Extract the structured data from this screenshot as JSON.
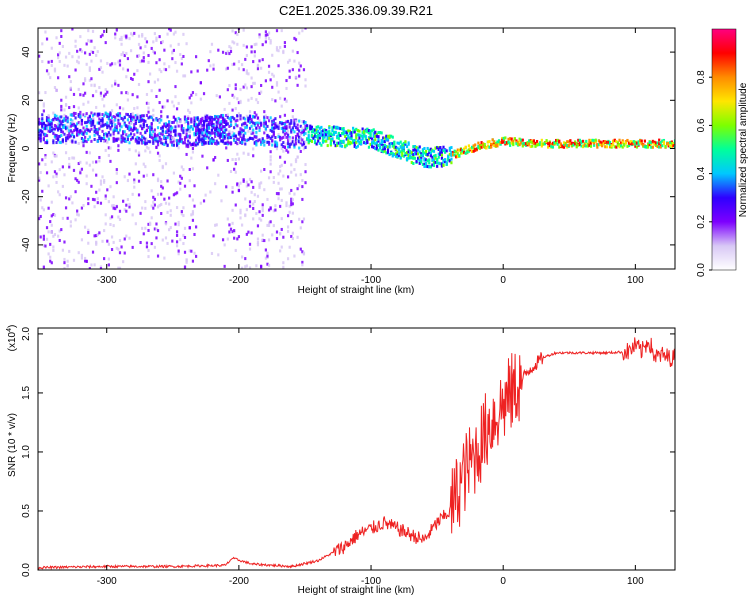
{
  "title": "C2E1.2025.336.09.39.R21",
  "chart_data": [
    {
      "type": "heatmap",
      "xlabel": "Height of straight line (km)",
      "ylabel": "Frequency (Hz)",
      "xlim": [
        -352,
        130
      ],
      "ylim": [
        -50,
        50
      ],
      "x_ticks": [
        -300,
        -200,
        -100,
        0,
        100
      ],
      "x_tick_labels": [
        "-300",
        "-200",
        "-100",
        "0",
        "100"
      ],
      "y_ticks": [
        -40,
        -20,
        0,
        20,
        40
      ],
      "y_tick_labels": [
        "-40",
        "-20",
        "0",
        "20",
        "40"
      ],
      "grid": false,
      "ridge": {
        "x": [
          -352,
          -300,
          -250,
          -200,
          -160,
          -130,
          -100,
          -80,
          -60,
          -40,
          -20,
          0,
          20,
          60,
          100,
          130
        ],
        "freq": [
          8,
          9,
          7,
          8,
          6,
          5,
          4,
          0,
          -4,
          -3,
          1,
          3,
          2,
          2,
          2,
          2
        ]
      },
      "colorbar": {
        "label": "Normalized spectral amplitude",
        "range": [
          0,
          1
        ],
        "ticks": [
          0.0,
          0.2,
          0.4,
          0.6,
          0.8
        ],
        "tick_labels": [
          "0.0",
          "0.2",
          "0.4",
          "0.6",
          "0.8"
        ],
        "colors": [
          "#ffffff",
          "#d8c8f5",
          "#7d00ff",
          "#2e00ff",
          "#00c8ff",
          "#00ff9b",
          "#7dff00",
          "#ffe600",
          "#ff8c00",
          "#ff0000",
          "#ff0080"
        ]
      }
    },
    {
      "type": "line",
      "xlabel": "Height of straight line (km)",
      "ylabel": "SNR (10 * v/v)",
      "y_multiplier_label": "(x10",
      "y_multiplier_exp": "4",
      "xlim": [
        -352,
        130
      ],
      "ylim": [
        0,
        2.05
      ],
      "x_ticks": [
        -300,
        -200,
        -100,
        0,
        100
      ],
      "x_tick_labels": [
        "-300",
        "-200",
        "-100",
        "0",
        "100"
      ],
      "y_ticks": [
        0.0,
        0.5,
        1.0,
        1.5,
        2.0
      ],
      "y_tick_labels": [
        "0.0",
        "0.5",
        "1.0",
        "1.5",
        "2.0"
      ],
      "grid": false,
      "series": [
        {
          "name": "SNR",
          "color": "#ee2222",
          "x": [
            -352,
            -300,
            -250,
            -210,
            -205,
            -190,
            -160,
            -140,
            -120,
            -110,
            -100,
            -90,
            -80,
            -70,
            -60,
            -50,
            -40,
            -30,
            -20,
            -10,
            0,
            10,
            20,
            30,
            40,
            60,
            80,
            95,
            100,
            105,
            110,
            115,
            120,
            125,
            130
          ],
          "y": [
            0.02,
            0.03,
            0.03,
            0.04,
            0.1,
            0.05,
            0.03,
            0.08,
            0.2,
            0.3,
            0.35,
            0.4,
            0.35,
            0.3,
            0.25,
            0.4,
            0.5,
            0.8,
            1.0,
            1.25,
            1.4,
            1.55,
            1.7,
            1.8,
            1.84,
            1.84,
            1.84,
            1.85,
            1.9,
            1.85,
            1.95,
            1.8,
            1.82,
            1.8,
            1.8
          ]
        }
      ]
    }
  ]
}
